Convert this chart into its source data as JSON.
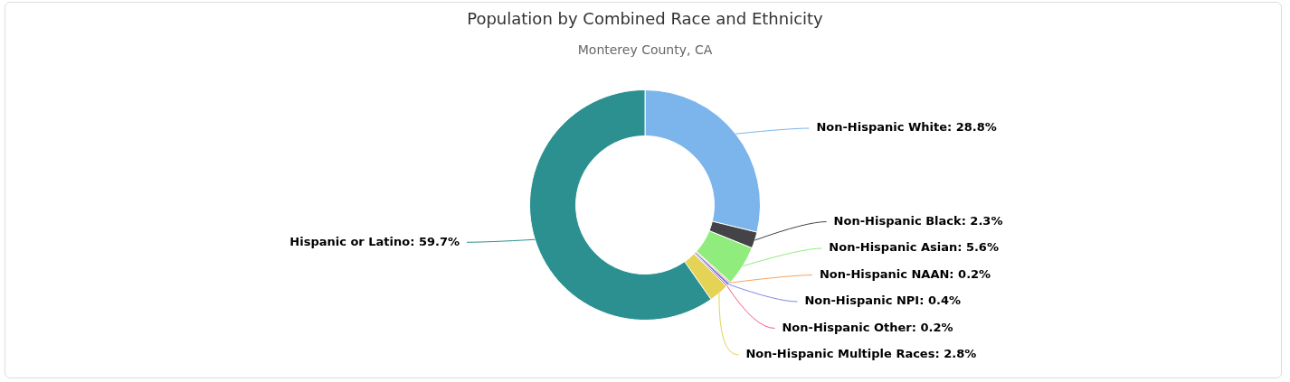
{
  "chart_data": {
    "type": "donut",
    "title": "Population by Combined Race and Ethnicity",
    "subtitle": "Monterey County, CA",
    "categories": [
      "Non-Hispanic White",
      "Non-Hispanic Black",
      "Non-Hispanic Asian",
      "Non-Hispanic NAAN",
      "Non-Hispanic NPI",
      "Non-Hispanic Other",
      "Non-Hispanic Multiple Races",
      "Hispanic or Latino"
    ],
    "values": [
      28.8,
      2.3,
      5.6,
      0.2,
      0.4,
      0.2,
      2.8,
      59.7
    ],
    "value_labels": [
      "28.8%",
      "2.3%",
      "5.6%",
      "0.2%",
      "0.4%",
      "0.2%",
      "2.8%",
      "59.7%"
    ],
    "colors": [
      "#7cb5ec",
      "#434348",
      "#90ed7d",
      "#f7a35c",
      "#8085e9",
      "#f15c80",
      "#e4d354",
      "#2b908f"
    ]
  }
}
